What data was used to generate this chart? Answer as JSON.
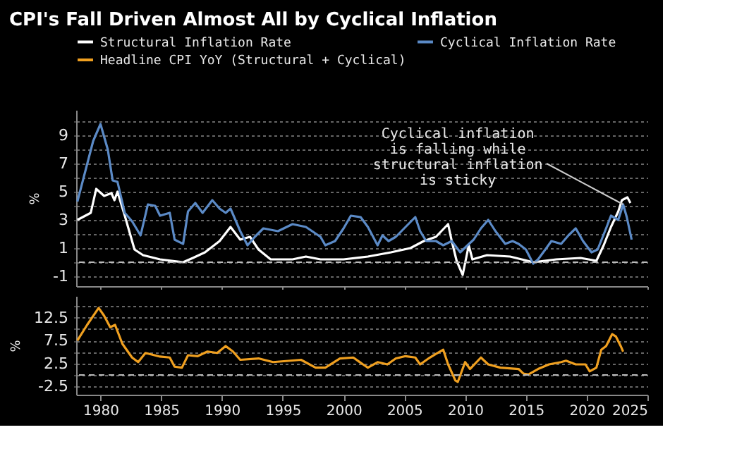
{
  "chart_data": [
    {
      "type": "line",
      "title": "CPI's Fall Driven Almost All by Cyclical Inflation",
      "ylabel": "%",
      "legend": "top",
      "grid": "y",
      "tick_labels": "y",
      "xlim": [
        1978,
        2025
      ],
      "xticks": [
        1980,
        1985,
        1990,
        1995,
        2000,
        2005,
        2010,
        2015,
        2020,
        2025
      ],
      "ylim": [
        -1.7,
        10.8
      ],
      "yticks": [
        -1,
        {
          "value": 0,
          "label": null
        },
        1,
        {
          "value": 2,
          "label": null
        },
        3,
        {
          "value": 4,
          "label": null
        },
        5,
        {
          "value": 6,
          "label": null
        },
        7,
        {
          "value": 8,
          "label": null
        },
        9,
        {
          "value": 10,
          "label": null
        }
      ],
      "ref_lines": [
        {
          "axis": "y",
          "value": 0,
          "label": null,
          "color": "#bbbbbb",
          "line_style": "dashed"
        }
      ],
      "annotations": [
        {
          "text": "Cyclical inflation\nis falling while\nstructural inflation\nis sticky",
          "x": 2023.0,
          "y": 4.1
        }
      ],
      "series": [
        {
          "name": "Structural Inflation Rate",
          "color": "#ffffff",
          "x": [
            1978.1,
            1979.2,
            1979.65,
            1980.3,
            1980.9,
            1981.15,
            1981.4,
            1982.0,
            1982.8,
            1983.5,
            1984.9,
            1986.8,
            1987.6,
            1988.6,
            1989.8,
            1990.7,
            1991.5,
            1992.3,
            1993.0,
            1994.0,
            1995.8,
            1996.9,
            1998.1,
            2000.0,
            2002.0,
            2003.9,
            2005.5,
            2006.6,
            2007.6,
            2008.6,
            2008.9,
            2009.3,
            2009.8,
            2010.3,
            2010.6,
            2011.8,
            2013.7,
            2015.6,
            2017.5,
            2019.5,
            2020.8,
            2021.4,
            2022.0,
            2022.6,
            2022.9,
            2023.35,
            2023.6
          ],
          "values": [
            3.0,
            3.5,
            5.2,
            4.7,
            4.9,
            4.4,
            5.0,
            3.3,
            0.9,
            0.5,
            0.2,
            0.0,
            0.3,
            0.7,
            1.5,
            2.5,
            1.6,
            1.8,
            0.9,
            0.2,
            0.2,
            0.4,
            0.2,
            0.2,
            0.4,
            0.7,
            1.0,
            1.5,
            1.8,
            2.7,
            1.5,
            0.1,
            -0.9,
            1.2,
            0.2,
            0.5,
            0.4,
            0.0,
            0.2,
            0.3,
            0.1,
            1.2,
            2.5,
            3.6,
            4.4,
            4.6,
            4.2
          ]
        },
        {
          "name": "Cyclical Inflation Rate",
          "color": "#5b8ac6",
          "x": [
            1978.1,
            1979.4,
            1980.0,
            1980.6,
            1981.0,
            1981.4,
            1982.0,
            1982.6,
            1983.3,
            1983.9,
            1984.5,
            1984.9,
            1985.7,
            1986.1,
            1986.8,
            1987.2,
            1987.8,
            1988.4,
            1989.2,
            1989.8,
            1990.3,
            1990.7,
            1991.5,
            1992.1,
            1992.7,
            1993.4,
            1994.6,
            1995.8,
            1996.9,
            1998.1,
            1998.5,
            1999.3,
            2000.0,
            2000.6,
            2001.4,
            2002.0,
            2002.8,
            2003.2,
            2003.7,
            2004.3,
            2005.1,
            2005.9,
            2006.3,
            2006.8,
            2007.6,
            2008.2,
            2008.9,
            2009.6,
            2010.2,
            2010.7,
            2011.3,
            2011.9,
            2012.5,
            2013.3,
            2013.9,
            2014.4,
            2015.0,
            2015.6,
            2016.0,
            2016.6,
            2017.1,
            2017.9,
            2018.5,
            2019.1,
            2019.7,
            2020.4,
            2020.9,
            2021.6,
            2022.0,
            2022.6,
            2023.0,
            2023.3,
            2023.7
          ],
          "values": [
            4.3,
            8.6,
            9.8,
            8.0,
            5.8,
            5.7,
            3.5,
            2.9,
            1.9,
            4.1,
            4.0,
            3.3,
            3.5,
            1.6,
            1.3,
            3.6,
            4.2,
            3.5,
            4.4,
            3.8,
            3.5,
            3.8,
            2.2,
            1.2,
            1.8,
            2.4,
            2.2,
            2.7,
            2.5,
            1.8,
            1.2,
            1.5,
            2.4,
            3.3,
            3.2,
            2.5,
            1.2,
            1.9,
            1.5,
            1.8,
            2.5,
            3.2,
            2.2,
            1.5,
            1.5,
            1.2,
            1.5,
            0.7,
            1.2,
            1.6,
            2.4,
            3.0,
            2.2,
            1.3,
            1.5,
            1.3,
            0.9,
            -0.1,
            0.2,
            0.9,
            1.5,
            1.3,
            1.9,
            2.4,
            1.5,
            0.7,
            0.9,
            2.4,
            3.3,
            3.0,
            4.1,
            3.2,
            1.6
          ]
        }
      ]
    },
    {
      "type": "line",
      "ylabel": "%",
      "grid": "y",
      "xlim": [
        1978,
        2025
      ],
      "xticks": [
        1980,
        1985,
        1990,
        1995,
        2000,
        2005,
        2010,
        2015,
        2020,
        2025
      ],
      "ylim": [
        -4.3,
        17.2
      ],
      "yticks": [
        -2.5,
        {
          "value": 0,
          "label": null
        },
        2.5,
        {
          "value": 5,
          "label": null
        },
        7.5,
        {
          "value": 10,
          "label": null
        },
        12.5,
        {
          "value": 15,
          "label": null
        }
      ],
      "ref_lines": [
        {
          "axis": "y",
          "value": 0,
          "label": null,
          "color": "#bbbbbb",
          "line_style": "dashed"
        }
      ],
      "series": [
        {
          "name": "Headline CPI YoY (Structural + Cyclical)",
          "color": "#f0a020",
          "x": [
            1978.1,
            1978.9,
            1979.85,
            1980.3,
            1980.8,
            1981.2,
            1981.8,
            1982.6,
            1983.1,
            1983.7,
            1984.9,
            1985.7,
            1986.1,
            1986.7,
            1987.2,
            1988.0,
            1988.8,
            1989.6,
            1990.3,
            1990.9,
            1991.5,
            1993.0,
            1994.2,
            1996.5,
            1997.7,
            1998.5,
            1999.7,
            2000.8,
            2001.6,
            2002.0,
            2002.8,
            2003.6,
            2004.3,
            2005.1,
            2005.9,
            2006.3,
            2007.1,
            2007.6,
            2008.2,
            2008.6,
            2009.2,
            2009.4,
            2010.0,
            2010.4,
            2011.3,
            2011.9,
            2012.9,
            2014.4,
            2014.8,
            2015.2,
            2016.0,
            2016.9,
            2017.9,
            2018.3,
            2019.1,
            2019.9,
            2020.25,
            2020.8,
            2021.2,
            2021.6,
            2022.1,
            2022.4,
            2022.8,
            2023.0
          ],
          "values": [
            7.5,
            10.9,
            14.6,
            12.9,
            10.4,
            10.9,
            6.8,
            3.8,
            2.8,
            4.8,
            4.0,
            3.8,
            1.8,
            1.6,
            4.3,
            4.1,
            5.1,
            4.8,
            6.3,
            5.1,
            3.3,
            3.6,
            2.8,
            3.3,
            1.6,
            1.6,
            3.6,
            3.8,
            2.3,
            1.6,
            2.8,
            2.3,
            3.6,
            4.1,
            3.8,
            2.3,
            3.8,
            4.6,
            5.5,
            2.3,
            -1.2,
            -1.5,
            2.8,
            1.3,
            3.8,
            2.3,
            1.6,
            1.3,
            0.3,
            0.1,
            1.3,
            2.3,
            2.8,
            3.1,
            2.3,
            2.3,
            0.8,
            1.6,
            5.5,
            6.3,
            8.9,
            8.4,
            6.3,
            5.1
          ]
        }
      ]
    }
  ]
}
